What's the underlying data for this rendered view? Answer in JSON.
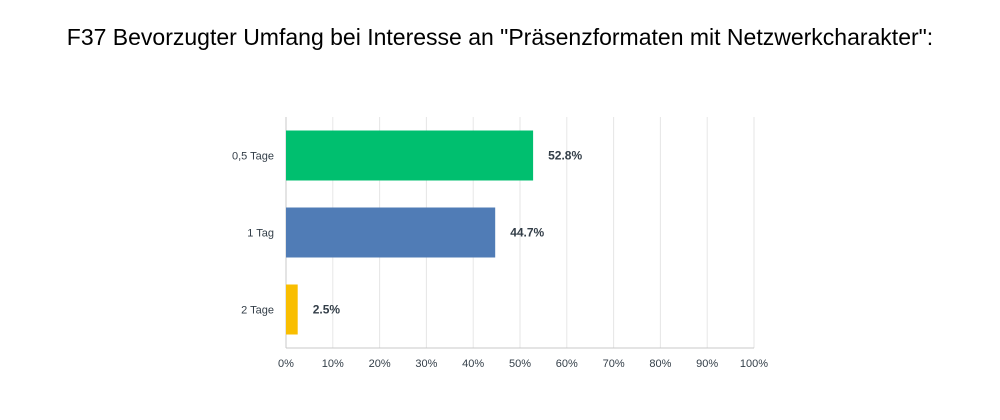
{
  "chart_data": {
    "type": "bar",
    "orientation": "horizontal",
    "title": "F37 Bevorzugter Umfang bei Interesse an \"Präsenzformaten mit Netzwerkcharakter\":",
    "categories": [
      "0,5 Tage",
      "1 Tag",
      "2 Tage"
    ],
    "values": [
      52.8,
      44.7,
      2.5
    ],
    "value_labels": [
      "52.8%",
      "44.7%",
      "2.5%"
    ],
    "colors": [
      "#00bf6f",
      "#507cb6",
      "#f9be00"
    ],
    "xlim": [
      0,
      100
    ],
    "x_ticks": [
      "0%",
      "10%",
      "20%",
      "30%",
      "40%",
      "50%",
      "60%",
      "70%",
      "80%",
      "90%",
      "100%"
    ],
    "grid": true,
    "legend": "none"
  }
}
